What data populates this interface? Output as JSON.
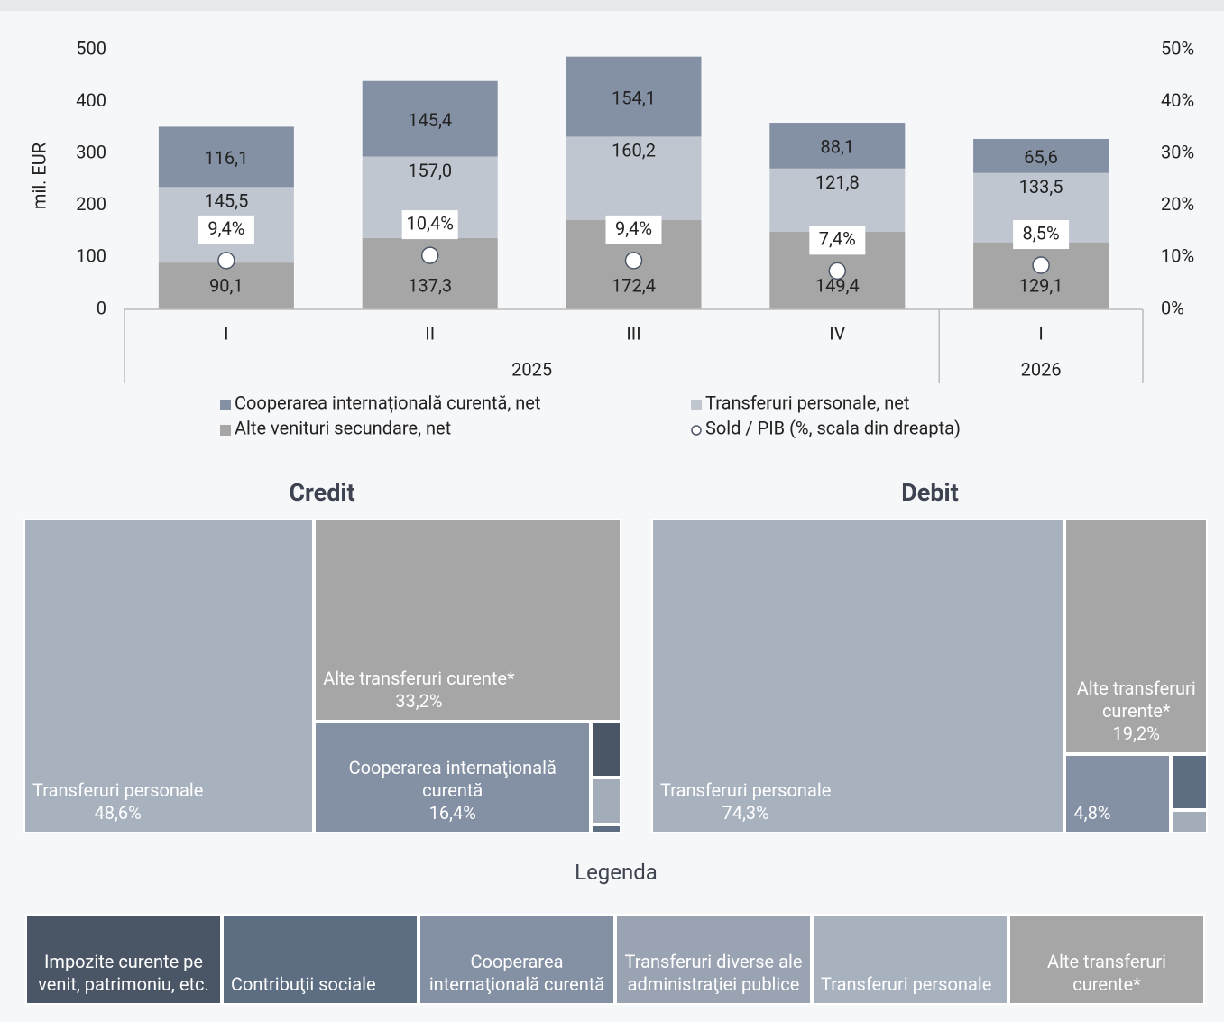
{
  "chart_data": [
    {
      "type": "bar",
      "stacked": true,
      "y_label": "mil. EUR",
      "categories": [
        "I",
        "II",
        "III",
        "IV",
        "I"
      ],
      "x_groups": [
        {
          "label": "2025",
          "count": 4
        },
        {
          "label": "2026",
          "count": 1
        }
      ],
      "ylim": [
        0,
        500
      ],
      "yticks": [
        0,
        100,
        200,
        300,
        400,
        500
      ],
      "y2lim": [
        0,
        50
      ],
      "y2ticks": [
        {
          "value": 0,
          "label": "0%"
        },
        {
          "value": 10,
          "label": "10%"
        },
        {
          "value": 20,
          "label": "20%"
        },
        {
          "value": 30,
          "label": "30%"
        },
        {
          "value": 40,
          "label": "40%"
        },
        {
          "value": 50,
          "label": "50%"
        }
      ],
      "series": [
        {
          "name": "Cooperarea internațională curentă, net",
          "color": "#8490a3",
          "values": [
            116.1,
            145.4,
            154.1,
            88.1,
            65.6
          ],
          "value_labels": [
            "116,1",
            "145,4",
            "154,1",
            "88,1",
            "65,6"
          ]
        },
        {
          "name": "Transferuri personale, net",
          "color": "#c0c6d0",
          "values": [
            145.5,
            157.0,
            160.2,
            121.8,
            133.5
          ],
          "value_labels": [
            "145,5",
            "157,0",
            "160,2",
            "121,8",
            "133,5"
          ]
        },
        {
          "name": "Alte venituri secundare, net",
          "color": "#a6a6a6",
          "values": [
            90.1,
            137.3,
            172.4,
            149.4,
            129.1
          ],
          "value_labels": [
            "90,1",
            "137,3",
            "172,4",
            "149,4",
            "129,1"
          ]
        },
        {
          "name": "Sold / PIB (%, scala din dreapta)",
          "color": "#4a5666",
          "axis": "y2",
          "marker": "circle",
          "values": [
            9.4,
            10.4,
            9.4,
            7.4,
            8.5
          ],
          "value_labels": [
            "9,4%",
            "10,4%",
            "9,4%",
            "7,4%",
            "8,5%"
          ]
        }
      ]
    },
    {
      "type": "treemap",
      "title": "Credit",
      "items": [
        {
          "name": "Transferuri personale",
          "value": 48.6,
          "value_label": "48,6%",
          "color": "#a8b2bf"
        },
        {
          "name": "Alte transferuri curente*",
          "value": 33.2,
          "value_label": "33,2%",
          "color": "#a6a6a6"
        },
        {
          "name": "Cooperarea internaţională curentă",
          "value": 16.4,
          "value_label": "16,4%",
          "color": "#8490a3"
        },
        {
          "value": 0.9,
          "color": "#4a5666"
        },
        {
          "value": 0.75,
          "color": "#a3acb9"
        },
        {
          "value": 0.15,
          "color": "#5e6e82"
        }
      ]
    },
    {
      "type": "treemap",
      "title": "Debit",
      "items": [
        {
          "name": "Transferuri personale",
          "value": 74.3,
          "value_label": "74,3%",
          "color": "#a8b2bf"
        },
        {
          "name": "Alte transferuri curente*",
          "value": 19.2,
          "value_label": "19,2%",
          "color": "#a6a6a6"
        },
        {
          "value": 4.8,
          "value_label": "4,8%",
          "color": "#8490a3"
        },
        {
          "value": 1.2,
          "color": "#5e6e82"
        },
        {
          "value": 0.5,
          "color": "#a3acb9"
        }
      ]
    }
  ],
  "legend": {
    "title": "Legenda",
    "items": [
      {
        "name": "Impozite curente pe venit, patrimoniu, etc.",
        "color": "#4a5666"
      },
      {
        "name": "Contribuţii sociale",
        "color": "#5e6e82"
      },
      {
        "name": "Cooperarea internaţională curentă",
        "color": "#8490a3"
      },
      {
        "name": "Transferuri diverse ale administraţiei publice",
        "color": "#9aa3b2"
      },
      {
        "name": "Transferuri personale",
        "color": "#a8b2bf"
      },
      {
        "name": "Alte transferuri curente*",
        "color": "#a6a6a6"
      }
    ]
  }
}
